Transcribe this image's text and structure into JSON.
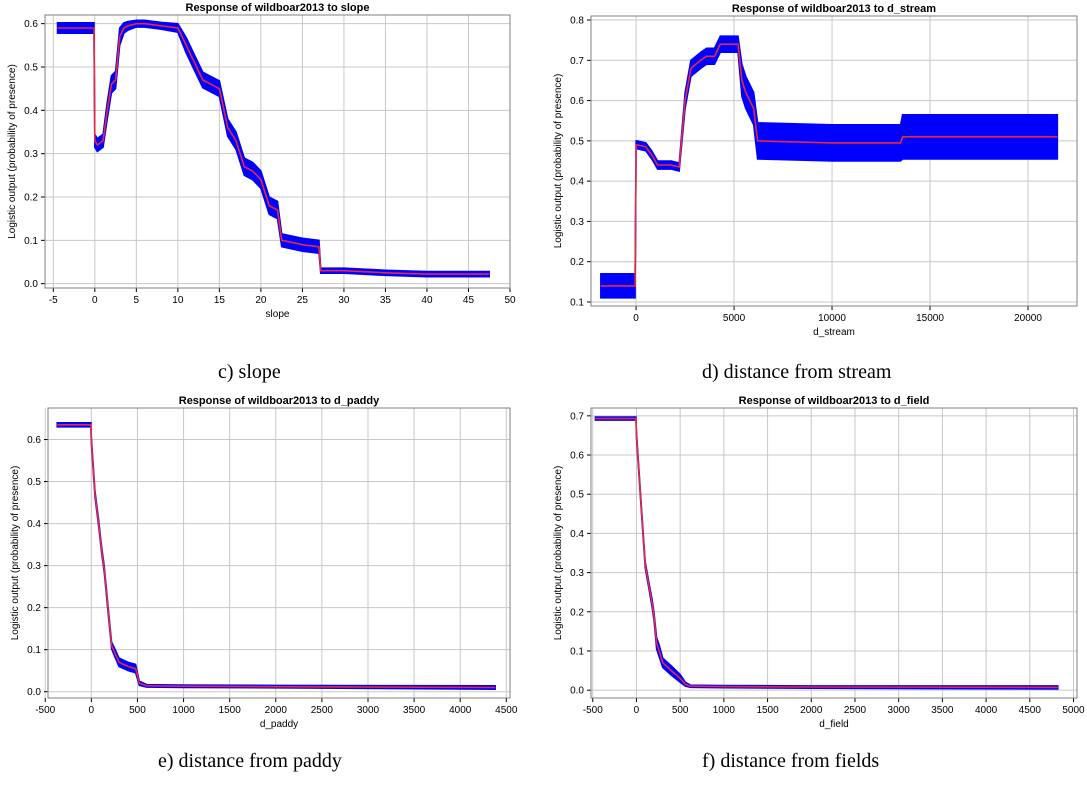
{
  "colors": {
    "line": "#e8283c",
    "band": "#0000ff",
    "grid": "#c8c8c8",
    "axis": "#000000"
  },
  "panels": [
    {
      "caption": "c) slope",
      "chart_data": {
        "type": "line",
        "title": "Response of wildboar2013 to slope",
        "xlabel": "slope",
        "ylabel": "Logistic output (probability of presence)",
        "xlim": [
          -6,
          50
        ],
        "ylim": [
          -0.01,
          0.62
        ],
        "xticks": [
          -5,
          0,
          5,
          10,
          15,
          20,
          25,
          30,
          35,
          40,
          45,
          50
        ],
        "yticks": [
          0.0,
          0.1,
          0.2,
          0.3,
          0.4,
          0.5,
          0.6
        ],
        "ytick_labels": [
          "0.0",
          "0.1",
          "0.2",
          "0.3",
          "0.4",
          "0.5",
          "0.6"
        ],
        "grid": true,
        "series": [
          {
            "x": [
              -4.5,
              -0.1,
              0.0,
              0.3,
              1.0,
              1.5,
              2.0,
              2.5,
              3.0,
              3.5,
              4.0,
              5.0,
              6.0,
              8.0,
              10.0,
              11.0,
              12.0,
              13.0,
              14.0,
              15.0,
              16.0,
              17.0,
              18.0,
              19.0,
              20.0,
              21.0,
              22.0,
              22.5,
              25.0,
              27.0,
              27.2,
              30.0,
              35.0,
              40.0,
              47.5
            ],
            "y": [
              0.59,
              0.59,
              0.33,
              0.32,
              0.33,
              0.4,
              0.46,
              0.47,
              0.57,
              0.59,
              0.595,
              0.6,
              0.6,
              0.595,
              0.59,
              0.55,
              0.51,
              0.47,
              0.46,
              0.45,
              0.36,
              0.33,
              0.27,
              0.26,
              0.24,
              0.18,
              0.17,
              0.1,
              0.09,
              0.085,
              0.03,
              0.03,
              0.025,
              0.022,
              0.022
            ],
            "band": [
              0.012,
              0.012,
              0.015,
              0.015,
              0.015,
              0.02,
              0.02,
              0.02,
              0.02,
              0.012,
              0.01,
              0.008,
              0.008,
              0.008,
              0.01,
              0.018,
              0.018,
              0.018,
              0.018,
              0.018,
              0.02,
              0.02,
              0.02,
              0.02,
              0.02,
              0.02,
              0.02,
              0.015,
              0.015,
              0.015,
              0.006,
              0.006,
              0.006,
              0.006,
              0.006
            ]
          }
        ]
      }
    },
    {
      "caption": "d) distance from stream",
      "chart_data": {
        "type": "line",
        "title": "Response of wildboar2013 to d_stream",
        "xlabel": "d_stream",
        "ylabel": "Logistic output (probability of presence)",
        "xlim": [
          -2300,
          22500
        ],
        "ylim": [
          0.09,
          0.81
        ],
        "xticks": [
          0,
          5000,
          10000,
          15000,
          20000
        ],
        "yticks": [
          0.1,
          0.2,
          0.3,
          0.4,
          0.5,
          0.6,
          0.7,
          0.8
        ],
        "ytick_labels": [
          "0.1",
          "0.2",
          "0.3",
          "0.4",
          "0.5",
          "0.6",
          "0.7",
          "0.8"
        ],
        "grid": true,
        "series": [
          {
            "x": [
              -1800,
              -50,
              0,
              80,
              500,
              800,
              1100,
              1800,
              2200,
              2500,
              2800,
              3300,
              3600,
              4000,
              4300,
              5200,
              5400,
              5600,
              6000,
              6200,
              10000,
              13500,
              13600,
              21500
            ],
            "y": [
              0.14,
              0.14,
              0.49,
              0.49,
              0.485,
              0.465,
              0.44,
              0.44,
              0.435,
              0.6,
              0.68,
              0.7,
              0.71,
              0.71,
              0.74,
              0.74,
              0.65,
              0.62,
              0.58,
              0.5,
              0.495,
              0.495,
              0.51,
              0.51
            ],
            "band": [
              0.03,
              0.03,
              0.01,
              0.01,
              0.01,
              0.01,
              0.01,
              0.01,
              0.01,
              0.02,
              0.02,
              0.02,
              0.02,
              0.02,
              0.02,
              0.02,
              0.04,
              0.04,
              0.04,
              0.045,
              0.045,
              0.045,
              0.055,
              0.055
            ]
          }
        ]
      }
    },
    {
      "caption": "e) distance from paddy",
      "chart_data": {
        "type": "line",
        "title": "Response of wildboar2013 to d_paddy",
        "xlabel": "d_paddy",
        "ylabel": "Logistic output (probability of presence)",
        "xlim": [
          -470,
          4540
        ],
        "ylim": [
          -0.015,
          0.675
        ],
        "xticks": [
          -500,
          0,
          500,
          1000,
          1500,
          2000,
          2500,
          3000,
          3500,
          4000,
          4500
        ],
        "yticks": [
          0.0,
          0.1,
          0.2,
          0.3,
          0.4,
          0.5,
          0.6
        ],
        "ytick_labels": [
          "0.0",
          "0.1",
          "0.2",
          "0.3",
          "0.4",
          "0.5",
          "0.6"
        ],
        "grid": true,
        "series": [
          {
            "x": [
              -370,
              -5,
              0,
              40,
              80,
              110,
              140,
              180,
              220,
              260,
              300,
              400,
              480,
              520,
              600,
              1000,
              2000,
              4380
            ],
            "y": [
              0.635,
              0.635,
              0.6,
              0.47,
              0.4,
              0.34,
              0.29,
              0.2,
              0.11,
              0.09,
              0.07,
              0.06,
              0.055,
              0.02,
              0.014,
              0.013,
              0.012,
              0.01
            ],
            "band": [
              0.005,
              0.005,
              0.008,
              0.008,
              0.008,
              0.008,
              0.008,
              0.008,
              0.008,
              0.01,
              0.01,
              0.01,
              0.01,
              0.005,
              0.003,
              0.003,
              0.003,
              0.004
            ]
          }
        ]
      }
    },
    {
      "caption": "f) distance from fields",
      "chart_data": {
        "type": "line",
        "title": "Response of wildboar2013 to d_field",
        "xlabel": "d_field",
        "ylabel": "Logistic output (probability of presence)",
        "xlim": [
          -520,
          5040
        ],
        "ylim": [
          -0.02,
          0.72
        ],
        "xticks": [
          -500,
          0,
          500,
          1000,
          1500,
          2000,
          2500,
          3000,
          3500,
          4000,
          4500,
          5000
        ],
        "yticks": [
          0.0,
          0.1,
          0.2,
          0.3,
          0.4,
          0.5,
          0.6,
          0.7
        ],
        "ytick_labels": [
          "0.0",
          "0.1",
          "0.2",
          "0.3",
          "0.4",
          "0.5",
          "0.6",
          "0.7"
        ],
        "grid": true,
        "series": [
          {
            "x": [
              -470,
              -5,
              0,
              30,
              60,
              100,
              140,
              180,
              200,
              230,
              260,
              300,
              400,
              500,
              560,
              620,
              1000,
              2000,
              4820
            ],
            "y": [
              0.693,
              0.693,
              0.65,
              0.55,
              0.45,
              0.32,
              0.27,
              0.22,
              0.19,
              0.12,
              0.1,
              0.07,
              0.05,
              0.03,
              0.015,
              0.01,
              0.009,
              0.008,
              0.007
            ],
            "band": [
              0.004,
              0.004,
              0.008,
              0.008,
              0.008,
              0.008,
              0.008,
              0.01,
              0.01,
              0.015,
              0.015,
              0.012,
              0.012,
              0.01,
              0.005,
              0.003,
              0.003,
              0.003,
              0.004
            ]
          }
        ]
      }
    }
  ]
}
